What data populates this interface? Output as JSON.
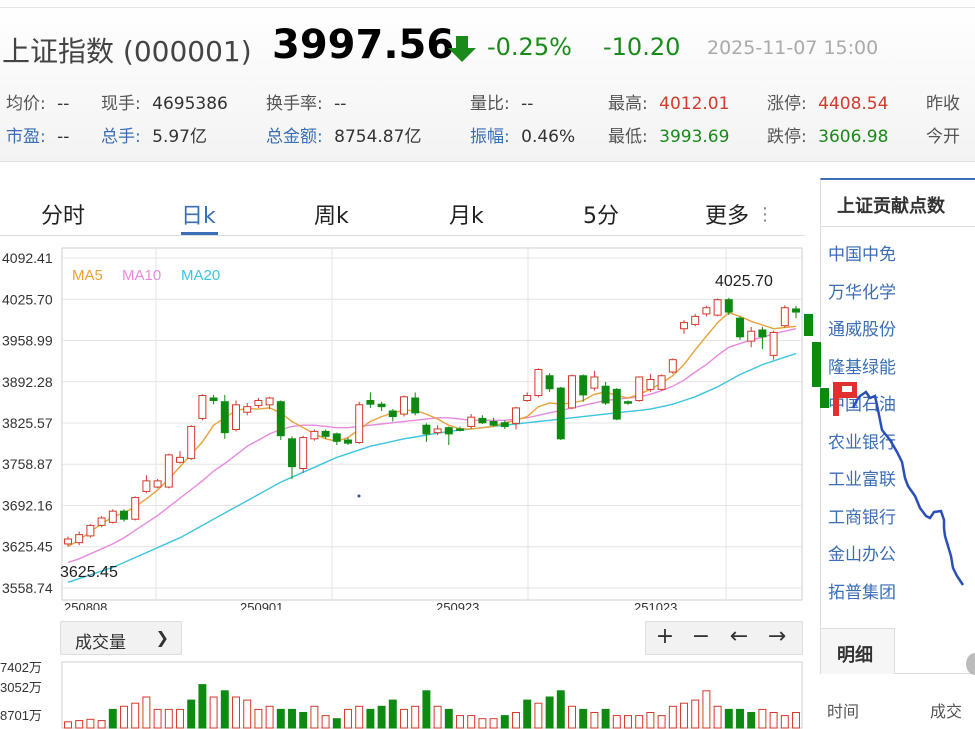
{
  "header": {
    "index_name": "上证指数",
    "index_code": "(000001)",
    "price": "3997.56",
    "change_pct": "-0.25%",
    "change": "-10.20",
    "timestamp": "2025-11-07 15:00",
    "stats": {
      "avg_label": "均价:",
      "avg_value": "--",
      "hand_label": "现手:",
      "hand_value": "4695386",
      "turnover_label": "换手率:",
      "turnover_value": "--",
      "volratio_label": "量比:",
      "volratio_value": "--",
      "high_label": "最高:",
      "high_value": "4012.01",
      "limitup_label": "涨停:",
      "limitup_value": "4408.54",
      "prevclose_label": "昨收",
      "pe_label": "市盈:",
      "pe_value": "--",
      "totalhand_label": "总手:",
      "totalhand_value": "5.97亿",
      "amount_label": "总金额:",
      "amount_value": "8754.87亿",
      "amp_label": "振幅:",
      "amp_value": "0.46%",
      "low_label": "最低:",
      "low_value": "3993.69",
      "limitdown_label": "跌停:",
      "limitdown_value": "3606.98",
      "open_label": "今开"
    }
  },
  "tabs": [
    "分时",
    "日k",
    "周k",
    "月k",
    "5分",
    "更多"
  ],
  "active_tab": "日k",
  "volume_control": {
    "label": "成交量",
    "chevron_icon": "chevron-down-icon"
  },
  "nav_buttons": [
    "+",
    "−",
    "←",
    "→"
  ],
  "right_panel": {
    "title": "上证贡献点数",
    "stocks": [
      "中国中免",
      "万华化学",
      "通威股份",
      "隆基绿能",
      "中国石油",
      "农业银行",
      "工业富联",
      "工商银行",
      "金山办公",
      "拓普集团"
    ],
    "detail_tab": "明细",
    "col_time": "时间",
    "col_cheng": "成交"
  },
  "colors": {
    "up": "#d23a2b",
    "down": "#0e8a12",
    "ma5": "#e8a23a",
    "ma10": "#e88ae0",
    "ma20": "#3cc4e0",
    "accent": "#3b6eb4"
  },
  "chart_data": {
    "type": "candlestick",
    "y_ticks": [
      "4092.41",
      "4025.70",
      "3958.99",
      "3892.28",
      "3825.57",
      "3758.87",
      "3692.16",
      "3625.45",
      "3558.74"
    ],
    "ylim": [
      3558.74,
      4092.41
    ],
    "x_ticks": [
      "250808",
      "250901",
      "250923",
      "251023"
    ],
    "legend": [
      "MA5",
      "MA10",
      "MA20"
    ],
    "max_label": "4025.70",
    "min_label": "3625.45",
    "candles": [
      {
        "o": 3630,
        "c": 3638,
        "h": 3642,
        "l": 3626
      },
      {
        "o": 3632,
        "c": 3645,
        "h": 3650,
        "l": 3628
      },
      {
        "o": 3643,
        "c": 3660,
        "h": 3662,
        "l": 3640
      },
      {
        "o": 3660,
        "c": 3672,
        "h": 3675,
        "l": 3657
      },
      {
        "o": 3665,
        "c": 3683,
        "h": 3686,
        "l": 3663
      },
      {
        "o": 3683,
        "c": 3670,
        "h": 3686,
        "l": 3666
      },
      {
        "o": 3670,
        "c": 3705,
        "h": 3707,
        "l": 3668
      },
      {
        "o": 3715,
        "c": 3732,
        "h": 3741,
        "l": 3712
      },
      {
        "o": 3722,
        "c": 3732,
        "h": 3735,
        "l": 3720
      },
      {
        "o": 3722,
        "c": 3774,
        "h": 3776,
        "l": 3720
      },
      {
        "o": 3762,
        "c": 3770,
        "h": 3780,
        "l": 3760
      },
      {
        "o": 3768,
        "c": 3820,
        "h": 3822,
        "l": 3766
      },
      {
        "o": 3833,
        "c": 3870,
        "h": 3872,
        "l": 3830
      },
      {
        "o": 3866,
        "c": 3862,
        "h": 3871,
        "l": 3856
      },
      {
        "o": 3860,
        "c": 3810,
        "h": 3871,
        "l": 3800
      },
      {
        "o": 3815,
        "c": 3855,
        "h": 3862,
        "l": 3812
      },
      {
        "o": 3843,
        "c": 3852,
        "h": 3858,
        "l": 3838
      },
      {
        "o": 3854,
        "c": 3862,
        "h": 3866,
        "l": 3850
      },
      {
        "o": 3855,
        "c": 3866,
        "h": 3868,
        "l": 3848
      },
      {
        "o": 3860,
        "c": 3805,
        "h": 3862,
        "l": 3798
      },
      {
        "o": 3800,
        "c": 3755,
        "h": 3804,
        "l": 3735
      },
      {
        "o": 3752,
        "c": 3802,
        "h": 3805,
        "l": 3745
      },
      {
        "o": 3800,
        "c": 3812,
        "h": 3815,
        "l": 3797
      },
      {
        "o": 3812,
        "c": 3804,
        "h": 3815,
        "l": 3800
      },
      {
        "o": 3808,
        "c": 3796,
        "h": 3810,
        "l": 3790
      },
      {
        "o": 3798,
        "c": 3793,
        "h": 3802,
        "l": 3790
      },
      {
        "o": 3794,
        "c": 3855,
        "h": 3860,
        "l": 3792
      },
      {
        "o": 3862,
        "c": 3856,
        "h": 3875,
        "l": 3850
      },
      {
        "o": 3856,
        "c": 3852,
        "h": 3860,
        "l": 3845
      },
      {
        "o": 3845,
        "c": 3836,
        "h": 3848,
        "l": 3828
      },
      {
        "o": 3840,
        "c": 3868,
        "h": 3870,
        "l": 3836
      },
      {
        "o": 3866,
        "c": 3842,
        "h": 3875,
        "l": 3838
      },
      {
        "o": 3822,
        "c": 3808,
        "h": 3825,
        "l": 3795
      },
      {
        "o": 3810,
        "c": 3816,
        "h": 3822,
        "l": 3806
      },
      {
        "o": 3818,
        "c": 3808,
        "h": 3820,
        "l": 3790
      },
      {
        "o": 3816,
        "c": 3815,
        "h": 3820,
        "l": 3812
      },
      {
        "o": 3820,
        "c": 3835,
        "h": 3840,
        "l": 3816
      },
      {
        "o": 3833,
        "c": 3826,
        "h": 3838,
        "l": 3824
      },
      {
        "o": 3828,
        "c": 3822,
        "h": 3834,
        "l": 3820
      },
      {
        "o": 3826,
        "c": 3820,
        "h": 3830,
        "l": 3816
      },
      {
        "o": 3825,
        "c": 3850,
        "h": 3852,
        "l": 3815
      },
      {
        "o": 3862,
        "c": 3870,
        "h": 3875,
        "l": 3860
      },
      {
        "o": 3870,
        "c": 3912,
        "h": 3914,
        "l": 3867
      },
      {
        "o": 3902,
        "c": 3881,
        "h": 3906,
        "l": 3876
      },
      {
        "o": 3882,
        "c": 3800,
        "h": 3884,
        "l": 3798
      },
      {
        "o": 3850,
        "c": 3902,
        "h": 3904,
        "l": 3848
      },
      {
        "o": 3902,
        "c": 3871,
        "h": 3904,
        "l": 3860
      },
      {
        "o": 3882,
        "c": 3900,
        "h": 3910,
        "l": 3878
      },
      {
        "o": 3885,
        "c": 3858,
        "h": 3892,
        "l": 3855
      },
      {
        "o": 3880,
        "c": 3832,
        "h": 3882,
        "l": 3830
      },
      {
        "o": 3860,
        "c": 3858,
        "h": 3862,
        "l": 3855
      },
      {
        "o": 3862,
        "c": 3900,
        "h": 3901,
        "l": 3860
      },
      {
        "o": 3880,
        "c": 3896,
        "h": 3905,
        "l": 3876
      },
      {
        "o": 3880,
        "c": 3902,
        "h": 3904,
        "l": 3878
      },
      {
        "o": 3908,
        "c": 3928,
        "h": 3930,
        "l": 3905
      },
      {
        "o": 3978,
        "c": 3988,
        "h": 3992,
        "l": 3970
      },
      {
        "o": 3985,
        "c": 3998,
        "h": 4002,
        "l": 3982
      },
      {
        "o": 4002,
        "c": 4012,
        "h": 4015,
        "l": 3998
      },
      {
        "o": 4000,
        "c": 4025,
        "h": 4027,
        "l": 3998
      },
      {
        "o": 4025,
        "c": 4005,
        "h": 4028,
        "l": 4000
      },
      {
        "o": 3995,
        "c": 3965,
        "h": 3998,
        "l": 3960
      },
      {
        "o": 3958,
        "c": 3974,
        "h": 3981,
        "l": 3948
      },
      {
        "o": 3976,
        "c": 3965,
        "h": 3981,
        "l": 3945
      },
      {
        "o": 3935,
        "c": 3972,
        "h": 3975,
        "l": 3928
      },
      {
        "o": 3983,
        "c": 4012,
        "h": 4016,
        "l": 3980
      },
      {
        "o": 4010,
        "c": 4005,
        "h": 4015,
        "l": 3995
      }
    ],
    "ma5": [
      3626,
      3636,
      3650,
      3662,
      3674,
      3680,
      3690,
      3703,
      3717,
      3735,
      3755,
      3775,
      3795,
      3822,
      3834,
      3846,
      3849,
      3848,
      3850,
      3842,
      3828,
      3818,
      3808,
      3800,
      3796,
      3802,
      3815,
      3828,
      3836,
      3842,
      3846,
      3846,
      3840,
      3832,
      3822,
      3816,
      3816,
      3818,
      3820,
      3826,
      3830,
      3836,
      3852,
      3858,
      3856,
      3858,
      3862,
      3872,
      3876,
      3870,
      3866,
      3872,
      3880,
      3890,
      3902,
      3920,
      3944,
      3966,
      3988,
      4004,
      3998,
      3990,
      3984,
      3978,
      3980,
      3982
    ],
    "ma10": [
      3600,
      3606,
      3614,
      3622,
      3630,
      3640,
      3652,
      3664,
      3676,
      3690,
      3704,
      3718,
      3732,
      3748,
      3760,
      3774,
      3788,
      3798,
      3808,
      3815,
      3820,
      3822,
      3822,
      3820,
      3818,
      3818,
      3820,
      3822,
      3824,
      3826,
      3828,
      3830,
      3832,
      3834,
      3834,
      3832,
      3830,
      3830,
      3830,
      3830,
      3832,
      3834,
      3838,
      3842,
      3846,
      3850,
      3854,
      3858,
      3862,
      3864,
      3866,
      3868,
      3872,
      3878,
      3885,
      3895,
      3908,
      3920,
      3935,
      3948,
      3954,
      3960,
      3964,
      3970,
      3974,
      3978
    ],
    "ma20": [
      3568,
      3574,
      3580,
      3586,
      3592,
      3600,
      3608,
      3616,
      3624,
      3632,
      3640,
      3650,
      3660,
      3670,
      3680,
      3690,
      3700,
      3710,
      3720,
      3730,
      3738,
      3746,
      3754,
      3762,
      3770,
      3776,
      3782,
      3788,
      3792,
      3796,
      3800,
      3803,
      3806,
      3809,
      3812,
      3814,
      3816,
      3818,
      3820,
      3822,
      3824,
      3826,
      3828,
      3830,
      3832,
      3834,
      3836,
      3838,
      3840,
      3842,
      3844,
      3846,
      3848,
      3852,
      3856,
      3862,
      3868,
      3876,
      3884,
      3894,
      3904,
      3912,
      3920,
      3926,
      3932,
      3938
    ],
    "volume_ticks": [
      "7402万",
      "3052万",
      "8701万"
    ],
    "volume_up": [
      true,
      true,
      true,
      true,
      false,
      true,
      true,
      true,
      true,
      true,
      true,
      false,
      false,
      true,
      false,
      true,
      true,
      true,
      true,
      false,
      false,
      false,
      true,
      true,
      false,
      true,
      true,
      false,
      false,
      false,
      true,
      true,
      false,
      true,
      false,
      true,
      true,
      true,
      true,
      false,
      true,
      false,
      true,
      false,
      false,
      true,
      false,
      true,
      false,
      true,
      true,
      true,
      true,
      true,
      true,
      true,
      true,
      true,
      true,
      false,
      false,
      false,
      true,
      true,
      true,
      true
    ],
    "volume_values": [
      0.1,
      0.12,
      0.14,
      0.12,
      0.3,
      0.35,
      0.4,
      0.5,
      0.3,
      0.3,
      0.3,
      0.45,
      0.7,
      0.5,
      0.6,
      0.5,
      0.45,
      0.3,
      0.35,
      0.3,
      0.3,
      0.25,
      0.35,
      0.2,
      0.15,
      0.3,
      0.35,
      0.3,
      0.35,
      0.45,
      0.3,
      0.35,
      0.6,
      0.35,
      0.3,
      0.2,
      0.2,
      0.15,
      0.15,
      0.2,
      0.25,
      0.45,
      0.4,
      0.5,
      0.6,
      0.35,
      0.3,
      0.25,
      0.3,
      0.2,
      0.2,
      0.2,
      0.25,
      0.2,
      0.35,
      0.4,
      0.45,
      0.6,
      0.35,
      0.3,
      0.3,
      0.25,
      0.3,
      0.25,
      0.2,
      0.25
    ]
  }
}
